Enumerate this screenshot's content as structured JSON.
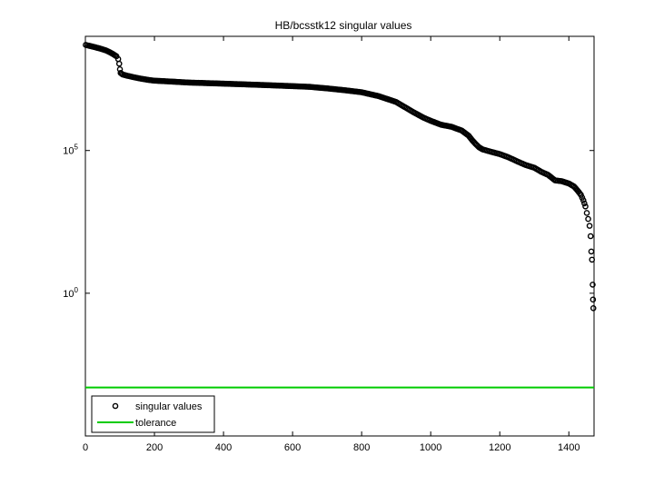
{
  "figure_title": "HB/bcsstk12 singular values",
  "chart_data": {
    "type": "scatter",
    "title": "HB/bcsstk12 singular values",
    "xlabel": "",
    "ylabel": "",
    "xlim": [
      0,
      1473
    ],
    "y_scale": "log",
    "ylim": [
      1e-05,
      1000000000.0
    ],
    "x_ticks": [
      0,
      200,
      400,
      600,
      800,
      1000,
      1200,
      1400
    ],
    "y_ticks": [
      {
        "value": 100000.0,
        "base": "10",
        "exp": "5"
      },
      {
        "value": 1,
        "base": "10",
        "exp": "0"
      }
    ],
    "grid": false,
    "legend_position": "bottom-left",
    "series": [
      {
        "name": "singular values",
        "marker": "circle",
        "color": "#000000",
        "points": [
          [
            1,
            500000000.0
          ],
          [
            10,
            470000000.0
          ],
          [
            20,
            440000000.0
          ],
          [
            30,
            410000000.0
          ],
          [
            40,
            380000000.0
          ],
          [
            50,
            350000000.0
          ],
          [
            60,
            320000000.0
          ],
          [
            70,
            280000000.0
          ],
          [
            80,
            240000000.0
          ],
          [
            90,
            200000000.0
          ],
          [
            95,
            160000000.0
          ],
          [
            98,
            110000000.0
          ],
          [
            100,
            70000000.0
          ],
          [
            102,
            52000000.0
          ],
          [
            108,
            46000000.0
          ],
          [
            120,
            42000000.0
          ],
          [
            140,
            37000000.0
          ],
          [
            160,
            33000000.0
          ],
          [
            180,
            30000000.0
          ],
          [
            200,
            28000000.0
          ],
          [
            250,
            26000000.0
          ],
          [
            300,
            24000000.0
          ],
          [
            350,
            23000000.0
          ],
          [
            400,
            22000000.0
          ],
          [
            450,
            21000000.0
          ],
          [
            500,
            20000000.0
          ],
          [
            550,
            19000000.0
          ],
          [
            600,
            18000000.0
          ],
          [
            650,
            17000000.0
          ],
          [
            700,
            15000000.0
          ],
          [
            750,
            13000000.0
          ],
          [
            800,
            11000000.0
          ],
          [
            850,
            8000000.0
          ],
          [
            900,
            5000000.0
          ],
          [
            950,
            2200000.0
          ],
          [
            980,
            1400000.0
          ],
          [
            1000,
            1100000.0
          ],
          [
            1030,
            800000.0
          ],
          [
            1060,
            680000.0
          ],
          [
            1090,
            500000.0
          ],
          [
            1110,
            330000.0
          ],
          [
            1120,
            230000.0
          ],
          [
            1130,
            170000.0
          ],
          [
            1140,
            130000.0
          ],
          [
            1150,
            110000.0
          ],
          [
            1175,
            90000.0
          ],
          [
            1200,
            75000.0
          ],
          [
            1225,
            58000.0
          ],
          [
            1250,
            42000.0
          ],
          [
            1275,
            31000.0
          ],
          [
            1300,
            25000.0
          ],
          [
            1320,
            18000.0
          ],
          [
            1340,
            14000.0
          ],
          [
            1360,
            9000.0
          ],
          [
            1380,
            8400.0
          ],
          [
            1400,
            7000.0
          ],
          [
            1415,
            5500.0
          ],
          [
            1425,
            4000.0
          ],
          [
            1435,
            2800.0
          ],
          [
            1442,
            1800.0
          ],
          [
            1448,
            1100.0
          ],
          [
            1452,
            650.0
          ],
          [
            1456,
            400.0
          ],
          [
            1460,
            230.0
          ],
          [
            1463,
            100.0
          ],
          [
            1465,
            29.0
          ],
          [
            1467,
            15.0
          ],
          [
            1469,
            2.0
          ],
          [
            1470,
            0.6
          ],
          [
            1471,
            0.3
          ]
        ]
      },
      {
        "name": "tolerance",
        "type": "line",
        "color": "#00cc00",
        "value": 0.0005
      }
    ]
  }
}
